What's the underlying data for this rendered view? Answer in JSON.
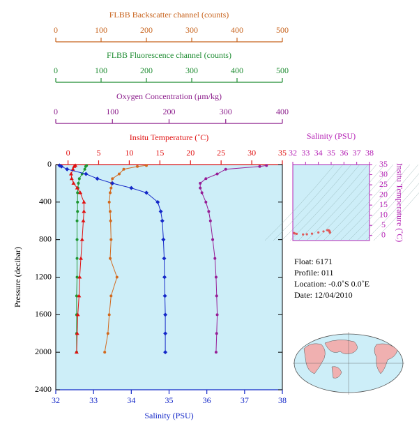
{
  "chart_data": [
    {
      "type": "line",
      "y_label": "Pressure (decibar)",
      "ylim": [
        0,
        2400
      ],
      "yticks": [
        0,
        400,
        800,
        1200,
        1600,
        2000,
        2400
      ],
      "y_inverted": true,
      "background": "#cdeef8",
      "pressure": [
        10,
        20,
        50,
        100,
        150,
        200,
        250,
        300,
        400,
        500,
        600,
        800,
        1000,
        1200,
        1400,
        1600,
        1800,
        2000
      ],
      "x_axes": [
        {
          "label": "FLBB Backscatter channel (counts)",
          "color": "#c8641e",
          "lim": [
            0,
            500
          ],
          "ticks": [
            0,
            100,
            200,
            300,
            400,
            500
          ],
          "position": "top"
        },
        {
          "label": "FLBB Fluorescence channel (counts)",
          "color": "#1e8c32",
          "lim": [
            0,
            500
          ],
          "ticks": [
            0,
            100,
            200,
            300,
            400,
            500
          ],
          "position": "top"
        },
        {
          "label": "Oxygen Concentration (μm/kg)",
          "color": "#8c1e8c",
          "lim": [
            0,
            400
          ],
          "ticks": [
            0,
            100,
            200,
            300,
            400
          ],
          "position": "top"
        },
        {
          "label": "Insitu Temperature (˚C)",
          "color": "#e01010",
          "lim": [
            -2,
            35
          ],
          "ticks": [
            0,
            5,
            10,
            15,
            20,
            25,
            30,
            35
          ],
          "position": "top"
        },
        {
          "label": "Salinity (PSU)",
          "color": "#1428c8",
          "lim": [
            32,
            38
          ],
          "ticks": [
            32,
            33,
            34,
            35,
            36,
            37,
            38
          ],
          "position": "bottom"
        }
      ],
      "series": [
        {
          "axis": 0,
          "color": "#d2691e",
          "marker": "circle",
          "values": [
            200,
            180,
            150,
            140,
            125,
            123,
            122,
            120,
            118,
            120,
            121,
            122,
            120,
            135,
            122,
            118,
            115,
            108
          ]
        },
        {
          "axis": 1,
          "color": "#1e9632",
          "marker": "circle",
          "values": [
            68,
            66,
            64,
            58,
            52,
            50,
            49,
            48,
            48,
            48,
            47,
            47,
            47,
            47,
            46,
            46,
            46,
            46
          ]
        },
        {
          "axis": 2,
          "color": "#961e96",
          "marker": "circle",
          "values": [
            372,
            360,
            300,
            285,
            265,
            255,
            255,
            258,
            265,
            270,
            273,
            277,
            281,
            283,
            284,
            285,
            284,
            283
          ]
        },
        {
          "axis": 3,
          "color": "#e01010",
          "marker": "triangle",
          "values": [
            1.2,
            1.0,
            0.8,
            0.5,
            0.6,
            0.9,
            1.5,
            2.0,
            2.6,
            2.6,
            2.5,
            2.3,
            2.1,
            1.9,
            1.8,
            1.6,
            1.5,
            1.4
          ]
        },
        {
          "axis": 4,
          "color": "#1428c8",
          "marker": "diamond",
          "values": [
            32.1,
            32.15,
            32.3,
            32.8,
            33.1,
            33.5,
            34.0,
            34.4,
            34.7,
            34.78,
            34.82,
            34.85,
            34.87,
            34.88,
            34.89,
            34.9,
            34.9,
            34.9
          ]
        }
      ]
    },
    {
      "type": "scatter",
      "title": "Salinity (PSU)",
      "y_label": "Insitu Temperature (˚C)",
      "color": "#e05a5a",
      "title_color": "#b420b4",
      "background": "#cdeef8",
      "xlim": [
        32,
        38
      ],
      "xticks": [
        32,
        33,
        34,
        35,
        36,
        37,
        38
      ],
      "ylim": [
        -2.5,
        35
      ],
      "yticks": [
        0,
        5,
        10,
        15,
        20,
        25,
        30,
        35
      ],
      "x": [
        32.1,
        32.15,
        32.3,
        32.8,
        33.1,
        33.5,
        34.0,
        34.4,
        34.7,
        34.78,
        34.82,
        34.85,
        34.87,
        34.88,
        34.89,
        34.9,
        34.9,
        34.9
      ],
      "y": [
        1.2,
        1.0,
        0.8,
        0.5,
        0.6,
        0.9,
        1.5,
        2.0,
        2.6,
        2.6,
        2.5,
        2.3,
        2.1,
        1.9,
        1.8,
        1.6,
        1.5,
        1.4
      ]
    }
  ],
  "info": [
    "Float:  6171",
    "Profile:  011",
    "Location:  -0.0˚S   0.0˚E",
    "Date:  12/04/2010"
  ]
}
